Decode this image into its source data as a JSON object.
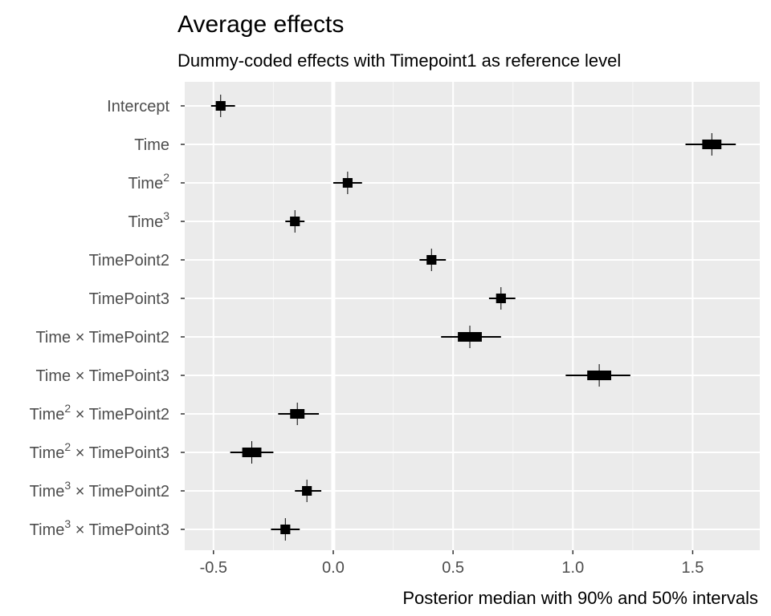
{
  "chart_data": {
    "type": "pointrange",
    "title": "Average effects",
    "subtitle": "Dummy-coded effects with Timepoint1 as reference level",
    "xlabel": "Posterior median with 90% and 50% intervals",
    "xlim": [
      -0.62,
      1.78
    ],
    "xticks": [
      -0.5,
      0.0,
      0.5,
      1.0,
      1.5
    ],
    "xtick_labels": [
      "-0.5",
      "0.0",
      "0.5",
      "1.0",
      "1.5"
    ],
    "reference_line": 0,
    "grid": true,
    "terms": [
      {
        "label": "Intercept",
        "median": -0.47,
        "ci50": [
          -0.49,
          -0.45
        ],
        "ci90": [
          -0.51,
          -0.41
        ]
      },
      {
        "label": "Time",
        "median": 1.58,
        "ci50": [
          1.54,
          1.62
        ],
        "ci90": [
          1.47,
          1.68
        ]
      },
      {
        "label": "Time2",
        "median": 0.06,
        "ci50": [
          0.04,
          0.08
        ],
        "ci90": [
          0.0,
          0.12
        ]
      },
      {
        "label": "Time3",
        "median": -0.16,
        "ci50": [
          -0.18,
          -0.14
        ],
        "ci90": [
          -0.2,
          -0.12
        ]
      },
      {
        "label": "TimePoint2",
        "median": 0.41,
        "ci50": [
          0.39,
          0.43
        ],
        "ci90": [
          0.36,
          0.47
        ]
      },
      {
        "label": "TimePoint3",
        "median": 0.7,
        "ci50": [
          0.68,
          0.72
        ],
        "ci90": [
          0.65,
          0.76
        ]
      },
      {
        "label": "Time × TimePoint2",
        "median": 0.57,
        "ci50": [
          0.52,
          0.62
        ],
        "ci90": [
          0.45,
          0.7
        ]
      },
      {
        "label": "Time × TimePoint3",
        "median": 1.11,
        "ci50": [
          1.06,
          1.16
        ],
        "ci90": [
          0.97,
          1.24
        ]
      },
      {
        "label": "Time2 × TimePoint2",
        "median": -0.15,
        "ci50": [
          -0.18,
          -0.12
        ],
        "ci90": [
          -0.23,
          -0.06
        ]
      },
      {
        "label": "Time2 × TimePoint3",
        "median": -0.34,
        "ci50": [
          -0.38,
          -0.3
        ],
        "ci90": [
          -0.43,
          -0.25
        ]
      },
      {
        "label": "Time3 × TimePoint2",
        "median": -0.11,
        "ci50": [
          -0.13,
          -0.09
        ],
        "ci90": [
          -0.16,
          -0.05
        ]
      },
      {
        "label": "Time3 × TimePoint3",
        "median": -0.2,
        "ci50": [
          -0.22,
          -0.18
        ],
        "ci90": [
          -0.26,
          -0.14
        ]
      }
    ],
    "label_parts": [
      {
        "base": "Intercept",
        "sup": "",
        "suffix": ""
      },
      {
        "base": "Time",
        "sup": "",
        "suffix": ""
      },
      {
        "base": "Time",
        "sup": "2",
        "suffix": ""
      },
      {
        "base": "Time",
        "sup": "3",
        "suffix": ""
      },
      {
        "base": "TimePoint2",
        "sup": "",
        "suffix": ""
      },
      {
        "base": "TimePoint3",
        "sup": "",
        "suffix": ""
      },
      {
        "base": "Time",
        "sup": "",
        "suffix": " × TimePoint2"
      },
      {
        "base": "Time",
        "sup": "",
        "suffix": " × TimePoint3"
      },
      {
        "base": "Time",
        "sup": "2",
        "suffix": " × TimePoint2"
      },
      {
        "base": "Time",
        "sup": "2",
        "suffix": " × TimePoint3"
      },
      {
        "base": "Time",
        "sup": "3",
        "suffix": " × TimePoint2"
      },
      {
        "base": "Time",
        "sup": "3",
        "suffix": " × TimePoint3"
      }
    ],
    "colors": {
      "panel": "#ebebeb",
      "grid_major": "#ffffff",
      "grid_minor": "#f7f7f7",
      "mark": "#000000"
    }
  }
}
